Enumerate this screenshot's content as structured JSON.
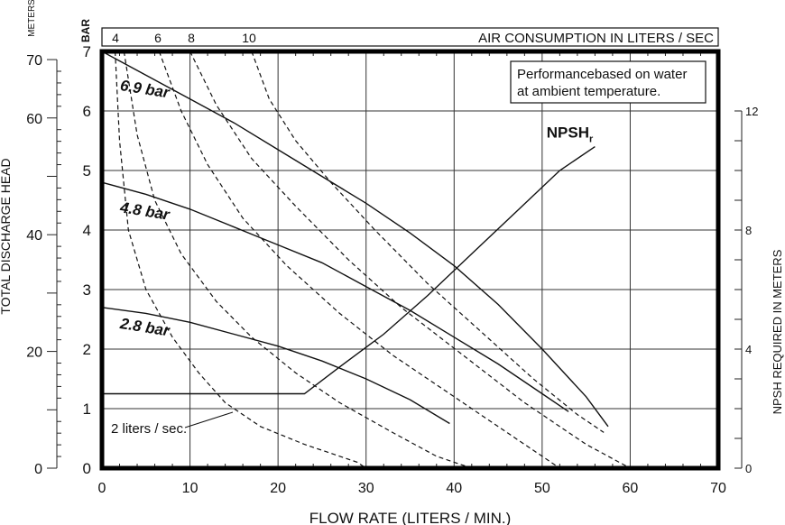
{
  "chart_data": {
    "type": "line",
    "x_axis": {
      "label": "FLOW RATE (LITERS / MIN.)",
      "range": [
        0,
        70
      ],
      "ticks": [
        0,
        10,
        20,
        30,
        40,
        50,
        60,
        70
      ]
    },
    "y_axis_bar": {
      "label": "BAR",
      "range": [
        0,
        7
      ],
      "ticks": [
        0,
        1,
        2,
        3,
        4,
        5,
        6,
        7
      ]
    },
    "y_axis_meters": {
      "label": "TOTAL DISCHARGE HEAD",
      "unit": "METERS",
      "range": [
        0,
        71.4
      ],
      "ticks": [
        0,
        20,
        40,
        60,
        70
      ]
    },
    "y_axis_npsh": {
      "label": "NPSH REQUIRED IN METERS",
      "range": [
        0,
        14
      ],
      "ticks": [
        0,
        4,
        8,
        12
      ]
    },
    "top_axis": {
      "label": "AIR CONSUMPTION IN LITERS / SEC",
      "ticks": [
        "4",
        "6",
        "8",
        "10"
      ]
    },
    "note": [
      "Performancebased on water",
      "at ambient temperature."
    ],
    "grid": true,
    "series": [
      {
        "name": "6.9 bar",
        "style": "solid",
        "label_position": [
          2,
          6.35
        ],
        "points": [
          [
            0,
            7.0
          ],
          [
            5,
            6.6
          ],
          [
            10,
            6.2
          ],
          [
            15,
            5.8
          ],
          [
            20,
            5.35
          ],
          [
            25,
            4.9
          ],
          [
            30,
            4.45
          ],
          [
            35,
            3.95
          ],
          [
            40,
            3.4
          ],
          [
            45,
            2.75
          ],
          [
            50,
            2.0
          ],
          [
            55,
            1.2
          ],
          [
            57.5,
            0.7
          ]
        ]
      },
      {
        "name": "4.8 bar",
        "style": "solid",
        "label_position": [
          2,
          4.3
        ],
        "points": [
          [
            0,
            4.8
          ],
          [
            5,
            4.6
          ],
          [
            10,
            4.35
          ],
          [
            15,
            4.05
          ],
          [
            20,
            3.75
          ],
          [
            25,
            3.45
          ],
          [
            30,
            3.05
          ],
          [
            35,
            2.65
          ],
          [
            40,
            2.2
          ],
          [
            45,
            1.75
          ],
          [
            50,
            1.25
          ],
          [
            53,
            0.95
          ]
        ]
      },
      {
        "name": "2.8 bar",
        "style": "solid",
        "label_position": [
          2,
          2.35
        ],
        "points": [
          [
            0,
            2.7
          ],
          [
            5,
            2.6
          ],
          [
            10,
            2.45
          ],
          [
            15,
            2.25
          ],
          [
            20,
            2.05
          ],
          [
            25,
            1.8
          ],
          [
            30,
            1.5
          ],
          [
            35,
            1.15
          ],
          [
            39.5,
            0.75
          ]
        ]
      },
      {
        "name": "2 liters / sec.",
        "style": "dashed",
        "points": [
          [
            1.5,
            7.0
          ],
          [
            2,
            5.5
          ],
          [
            3,
            4.0
          ],
          [
            5,
            3.0
          ],
          [
            8,
            2.2
          ],
          [
            11,
            1.6
          ],
          [
            14,
            1.1
          ],
          [
            18,
            0.7
          ],
          [
            23,
            0.4
          ],
          [
            29,
            0.1
          ],
          [
            30,
            0
          ]
        ]
      },
      {
        "name": "4",
        "style": "dashed",
        "points": [
          [
            2.5,
            7.0
          ],
          [
            4,
            5.6
          ],
          [
            6,
            4.5
          ],
          [
            9,
            3.6
          ],
          [
            13,
            2.8
          ],
          [
            17,
            2.2
          ],
          [
            22,
            1.6
          ],
          [
            27,
            1.1
          ],
          [
            33,
            0.6
          ],
          [
            38,
            0.2
          ],
          [
            42,
            0
          ]
        ]
      },
      {
        "name": "6",
        "style": "dashed",
        "points": [
          [
            6.5,
            7.0
          ],
          [
            9,
            6.0
          ],
          [
            12,
            5.1
          ],
          [
            16,
            4.2
          ],
          [
            21,
            3.4
          ],
          [
            27,
            2.6
          ],
          [
            33,
            1.9
          ],
          [
            40,
            1.2
          ],
          [
            46,
            0.6
          ],
          [
            52,
            0
          ]
        ]
      },
      {
        "name": "8",
        "style": "dashed",
        "points": [
          [
            10,
            7.0
          ],
          [
            13,
            6.1
          ],
          [
            17,
            5.2
          ],
          [
            22,
            4.4
          ],
          [
            28,
            3.5
          ],
          [
            34,
            2.7
          ],
          [
            41,
            1.9
          ],
          [
            48,
            1.1
          ],
          [
            55,
            0.4
          ],
          [
            60,
            0
          ]
        ]
      },
      {
        "name": "10",
        "style": "dashed",
        "points": [
          [
            17,
            7.0
          ],
          [
            19,
            6.2
          ],
          [
            22,
            5.5
          ],
          [
            26,
            4.8
          ],
          [
            31,
            4.0
          ],
          [
            37,
            3.1
          ],
          [
            43,
            2.3
          ],
          [
            49,
            1.5
          ],
          [
            54,
            0.9
          ],
          [
            57,
            0.6
          ]
        ]
      }
    ],
    "npsh_curve": {
      "name": "NPSH",
      "subscript": "r",
      "label_position": [
        50.5,
        5.55
      ],
      "points": [
        [
          0,
          1.25
        ],
        [
          23,
          1.25
        ],
        [
          27,
          1.7
        ],
        [
          32,
          2.25
        ],
        [
          37,
          2.9
        ],
        [
          42,
          3.6
        ],
        [
          47,
          4.3
        ],
        [
          52,
          5.0
        ],
        [
          56,
          5.4
        ]
      ]
    }
  }
}
